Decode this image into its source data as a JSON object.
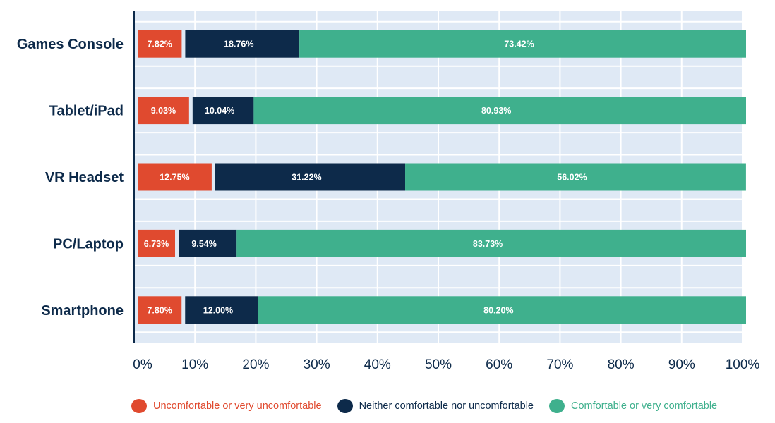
{
  "chart_data": {
    "type": "bar",
    "orientation": "horizontal",
    "stacked": true,
    "categories": [
      "Games Console",
      "Tablet/iPad",
      "VR Headset",
      "PC/Laptop",
      "Smartphone"
    ],
    "series": [
      {
        "name": "Uncomfortable or very uncomfortable",
        "color": "#e04a2f",
        "values": [
          7.82,
          9.03,
          12.75,
          6.73,
          7.8
        ],
        "labels": [
          "7.82%",
          "9.03%",
          "12.75%",
          "6.73%",
          "7.80%"
        ]
      },
      {
        "name": "Neither comfortable nor uncomfortable",
        "color": "#0d2a4a",
        "values": [
          18.76,
          10.04,
          31.22,
          9.54,
          12.0
        ],
        "labels": [
          "18.76%",
          "10.04%",
          "31.22%",
          "9.54%",
          "12.00%"
        ]
      },
      {
        "name": "Comfortable or very comfortable",
        "color": "#3fb08d",
        "values": [
          73.42,
          80.93,
          56.02,
          83.73,
          80.2
        ],
        "labels": [
          "73.42%",
          "80.93%",
          "56.02%",
          "83.73%",
          "80.20%"
        ]
      }
    ],
    "xlim": [
      0,
      100
    ],
    "xticks": [
      0,
      10,
      20,
      30,
      40,
      50,
      60,
      70,
      80,
      90,
      100
    ],
    "xtick_labels": [
      "0%",
      "10%",
      "20%",
      "30%",
      "40%",
      "50%",
      "60%",
      "70%",
      "80%",
      "90%",
      "100%"
    ],
    "grid": true,
    "legend_position": "bottom",
    "title": "",
    "xlabel": "",
    "ylabel": ""
  }
}
